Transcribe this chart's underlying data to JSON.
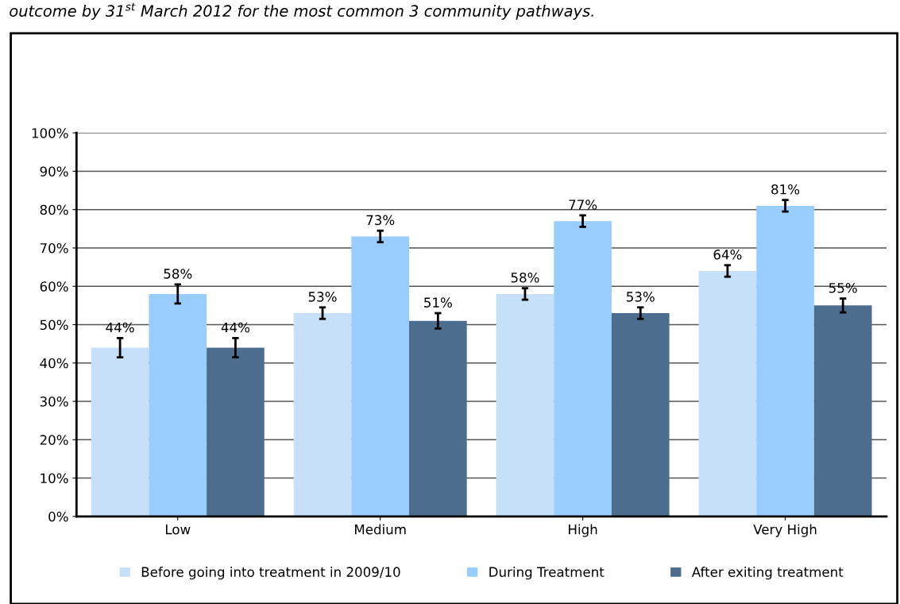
{
  "chart_data": {
    "type": "bar",
    "title": "outcome by 31$^{st}$ March 2012 for the most common 3 community pathways.",
    "categories": [
      "Low",
      "Medium",
      "High",
      "Very High"
    ],
    "series": [
      {
        "name": "Before going into treatment in 2009/10",
        "color": "#c6e0fa",
        "values": [
          44,
          53,
          58,
          64
        ],
        "value_labels": [
          "44%",
          "53%",
          "58%",
          "64%"
        ],
        "errors": [
          2.5,
          1.5,
          1.5,
          1.5
        ]
      },
      {
        "name": "During Treatment",
        "color": "#99ccff",
        "values": [
          58,
          73,
          77,
          81
        ],
        "value_labels": [
          "58%",
          "73%",
          "77%",
          "81%"
        ],
        "errors": [
          2.5,
          1.5,
          1.5,
          1.5
        ]
      },
      {
        "name": "After exiting treatment",
        "color": "#4d6d8f",
        "values": [
          44,
          51,
          53,
          55
        ],
        "value_labels": [
          "44%",
          "51%",
          "53%",
          "55%"
        ],
        "errors": [
          2.5,
          2,
          1.5,
          1.8
        ]
      }
    ],
    "ylim": [
      0,
      100
    ],
    "yticks": [
      {
        "value": 0,
        "label": "0%"
      },
      {
        "value": 10,
        "label": "10%"
      },
      {
        "value": 20,
        "label": "20%"
      },
      {
        "value": 30,
        "label": "30%"
      },
      {
        "value": 40,
        "label": "40%"
      },
      {
        "value": 50,
        "label": "50%"
      },
      {
        "value": 60,
        "label": "60%"
      },
      {
        "value": 70,
        "label": "70%"
      },
      {
        "value": 80,
        "label": "80%"
      },
      {
        "value": 90,
        "label": "90%"
      },
      {
        "value": 100,
        "label": "100%"
      }
    ],
    "grid": "y",
    "legend": "bottom"
  }
}
